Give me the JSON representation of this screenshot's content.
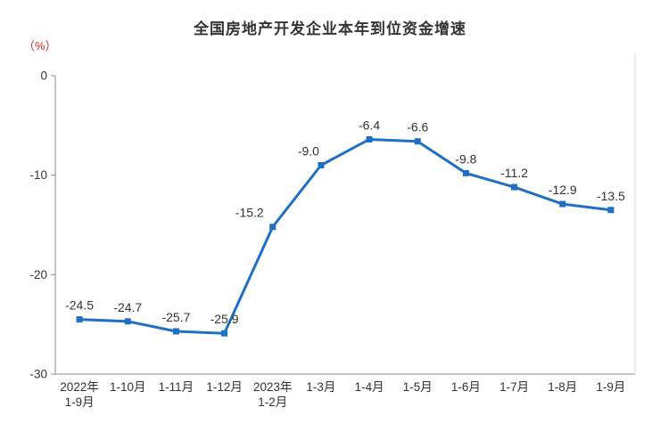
{
  "chart_data": {
    "type": "line",
    "title": "全国房地产开发企业本年到位资金增速",
    "unit_label": "（%）",
    "categories": [
      "2022年\n1-9月",
      "1-10月",
      "1-11月",
      "1-12月",
      "2023年\n1-2月",
      "1-3月",
      "1-4月",
      "1-5月",
      "1-6月",
      "1-7月",
      "1-8月",
      "1-9月"
    ],
    "values": [
      -24.5,
      -24.7,
      -25.7,
      -25.9,
      -15.2,
      -9.0,
      -6.4,
      -6.6,
      -9.8,
      -11.2,
      -12.9,
      -13.5
    ],
    "data_labels": [
      "-24.5",
      "-24.7",
      "-25.7",
      "-25.9",
      "-15.2",
      "-9.0",
      "-6.4",
      "-6.6",
      "-9.8",
      "-11.2",
      "-12.9",
      "-13.5"
    ],
    "ylim": [
      -30,
      0
    ],
    "yticks": [
      0,
      -10,
      -20,
      -30
    ],
    "ytick_labels": [
      "0",
      "-10",
      "-20",
      "-30"
    ],
    "grid": false,
    "legend": "none",
    "colors": {
      "line": "#1f6fc4",
      "marker": "#1f6fc4",
      "title": "#333333",
      "unit": "#d22a2a",
      "axis": "#8c8c8c",
      "label": "#333333",
      "tick_text": "#333333",
      "plot_border": "#d9d9d9"
    }
  }
}
